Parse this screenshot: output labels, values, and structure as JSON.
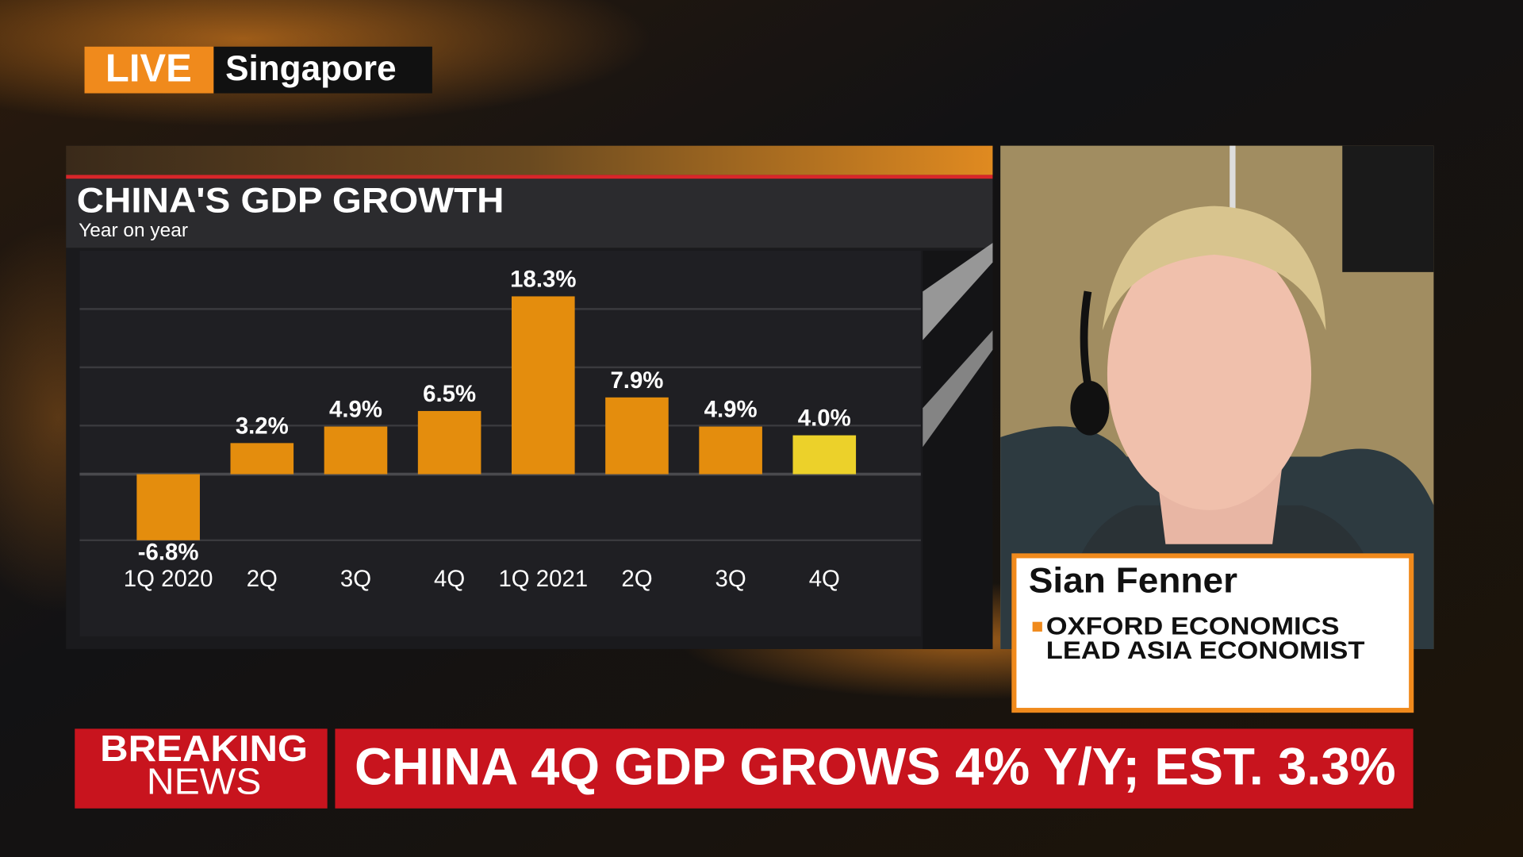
{
  "live_badge": {
    "label": "LIVE",
    "location": "Singapore"
  },
  "chart_data": {
    "type": "bar",
    "title": "CHINA'S GDP GROWTH",
    "subtitle": "Year on year",
    "categories": [
      "1Q 2020",
      "2Q",
      "3Q",
      "4Q",
      "1Q 2021",
      "2Q",
      "3Q",
      "4Q"
    ],
    "values": [
      -6.8,
      3.2,
      4.9,
      6.5,
      18.3,
      7.9,
      4.9,
      4.0
    ],
    "value_labels": [
      "-6.8%",
      "3.2%",
      "4.9%",
      "6.5%",
      "18.3%",
      "7.9%",
      "4.9%",
      "4.0%"
    ],
    "colors": [
      "#e48d0d",
      "#e48d0d",
      "#e48d0d",
      "#e48d0d",
      "#e48d0d",
      "#e48d0d",
      "#e48d0d",
      "#ecd12a"
    ],
    "ylim": [
      -16.7,
      23
    ]
  },
  "guest": {
    "name": "Sian Fenner",
    "affiliation": "OXFORD ECONOMICS",
    "role": "LEAD ASIA ECONOMIST"
  },
  "ticker": {
    "label_line1": "BREAKING",
    "label_line2": "NEWS",
    "headline": "CHINA 4Q GDP GROWS 4% Y/Y; EST. 3.3%"
  }
}
